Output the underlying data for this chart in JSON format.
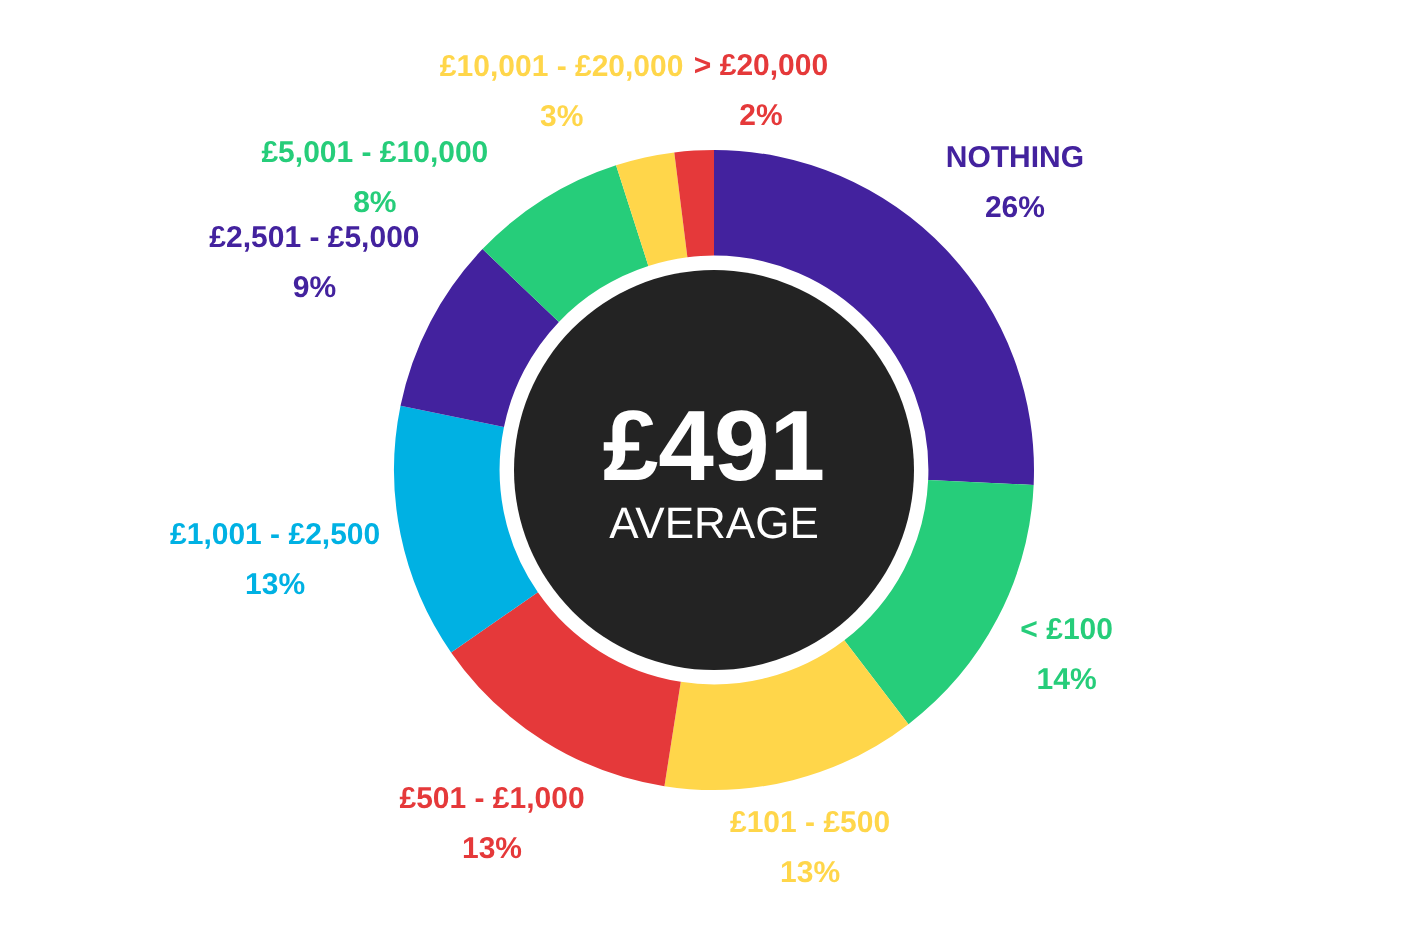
{
  "chart_data": {
    "type": "donut",
    "categories": [
      "NOTHING",
      "< £100",
      "£101 - £500",
      "£501 - £1,000",
      "£1,001 - £2,500",
      "£2,501 - £5,000",
      "£5,001 - £10,000",
      "£10,001 - £20,000",
      "> £20,000"
    ],
    "values": [
      26,
      14,
      13,
      13,
      13,
      9,
      8,
      3,
      2
    ],
    "value_labels": [
      "26%",
      "14%",
      "13%",
      "13%",
      "13%",
      "9%",
      "8%",
      "3%",
      "2%"
    ],
    "colors": [
      "#43229e",
      "#26cd7a",
      "#ffd64a",
      "#e5393a",
      "#00b1e3",
      "#43229e",
      "#26cd7a",
      "#ffd64a",
      "#e5393a"
    ],
    "annotations": [
      "£491",
      "AVERAGE"
    ]
  }
}
